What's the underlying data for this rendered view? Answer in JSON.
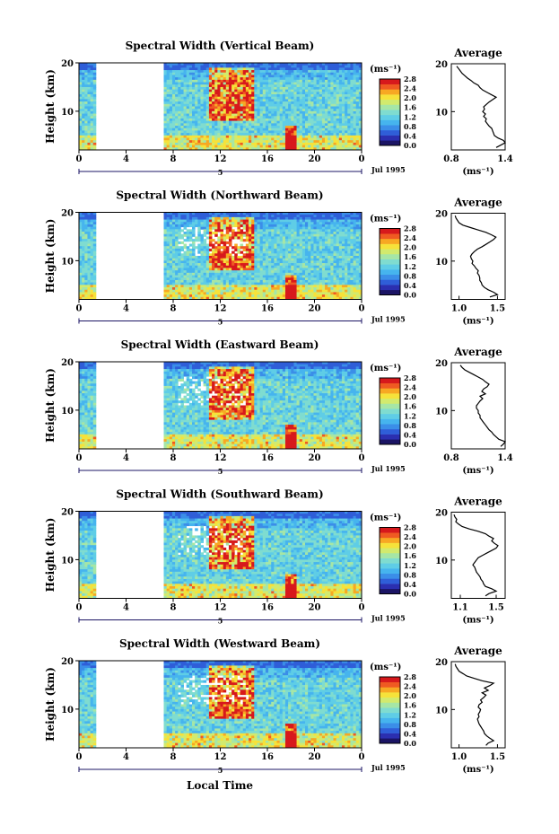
{
  "chart_data": [
    {
      "type": "heatmap",
      "title": "Spectral Width (Vertical Beam)",
      "ylabel": "Height (km)",
      "xticks": [
        "0",
        "4",
        "8",
        "12",
        "16",
        "20",
        "0"
      ],
      "ytick_labels": [
        "10",
        "20"
      ],
      "ylim": [
        2,
        20
      ],
      "xlim": [
        0,
        24
      ],
      "date_label": "Jul 1995",
      "day_marker": "5",
      "colorbar": {
        "unit_label": "(ms⁻¹)",
        "ticks": [
          "2.8",
          "2.4",
          "2.0",
          "1.6",
          "1.2",
          "0.8",
          "0.4",
          "0.0"
        ],
        "range": [
          0.0,
          2.8
        ]
      },
      "data_gap_hours": [
        1.5,
        7.0
      ],
      "profile": {
        "title": "Average",
        "xlabel": "(ms⁻¹)",
        "xticks": [
          "0.8",
          "1.4"
        ],
        "xlim": [
          0.8,
          1.4
        ],
        "yticks": [
          "10",
          "20"
        ],
        "ylim": [
          2,
          20
        ],
        "heights": [
          2.5,
          3,
          3.5,
          4,
          4.5,
          5,
          5.5,
          6,
          6.5,
          7,
          7.5,
          8,
          8.5,
          9,
          9.5,
          10,
          10.5,
          11,
          11.5,
          12,
          12.5,
          13,
          13.5,
          14,
          14.5,
          15,
          15.5,
          16,
          16.5,
          17,
          17.5,
          18,
          18.5,
          19,
          19.5
        ],
        "values": [
          1.3,
          1.35,
          1.4,
          1.38,
          1.32,
          1.28,
          1.27,
          1.26,
          1.25,
          1.22,
          1.2,
          1.18,
          1.19,
          1.16,
          1.18,
          1.15,
          1.17,
          1.16,
          1.19,
          1.22,
          1.26,
          1.3,
          1.25,
          1.2,
          1.15,
          1.12,
          1.1,
          1.05,
          1.02,
          0.98,
          0.95,
          0.92,
          0.9,
          0.88,
          0.86
        ]
      }
    },
    {
      "type": "heatmap",
      "title": "Spectral Width (Northward Beam)",
      "ylabel": "Height (km)",
      "xticks": [
        "0",
        "4",
        "8",
        "12",
        "16",
        "20",
        "0"
      ],
      "ytick_labels": [
        "10",
        "20"
      ],
      "ylim": [
        2,
        20
      ],
      "xlim": [
        0,
        24
      ],
      "date_label": "Jul 1995",
      "day_marker": "5",
      "colorbar": {
        "unit_label": "(ms⁻¹)",
        "ticks": [
          "2.8",
          "2.4",
          "2.0",
          "1.6",
          "1.2",
          "0.8",
          "0.4",
          "0.0"
        ],
        "range": [
          0.0,
          2.8
        ]
      },
      "data_gap_hours": [
        1.5,
        7.0
      ],
      "profile": {
        "title": "Average",
        "xlabel": "(ms⁻¹)",
        "xticks": [
          "1.0",
          "1.5"
        ],
        "xlim": [
          0.9,
          1.6
        ],
        "yticks": [
          "10",
          "20"
        ],
        "ylim": [
          2,
          20
        ],
        "heights": [
          2.5,
          3,
          3.5,
          4,
          4.5,
          5,
          5.5,
          6,
          6.5,
          7,
          7.5,
          8,
          8.5,
          9,
          9.5,
          10,
          10.5,
          11,
          11.5,
          12,
          12.5,
          13,
          13.5,
          14,
          14.5,
          15,
          15.5,
          16,
          16.5,
          17,
          17.5,
          18,
          18.5,
          19,
          19.5
        ],
        "values": [
          1.4,
          1.5,
          1.45,
          1.38,
          1.33,
          1.3,
          1.29,
          1.27,
          1.27,
          1.26,
          1.24,
          1.25,
          1.22,
          1.2,
          1.17,
          1.18,
          1.16,
          1.15,
          1.17,
          1.2,
          1.24,
          1.3,
          1.35,
          1.4,
          1.45,
          1.48,
          1.42,
          1.35,
          1.25,
          1.15,
          1.05,
          1.0,
          0.98,
          0.96,
          0.95
        ]
      }
    },
    {
      "type": "heatmap",
      "title": "Spectral Width (Eastward Beam)",
      "ylabel": "Height (km)",
      "xticks": [
        "0",
        "4",
        "8",
        "12",
        "16",
        "20",
        "0"
      ],
      "ytick_labels": [
        "10",
        "20"
      ],
      "ylim": [
        2,
        20
      ],
      "xlim": [
        0,
        24
      ],
      "date_label": "Jul 1995",
      "day_marker": "5",
      "colorbar": {
        "unit_label": "(ms⁻¹)",
        "ticks": [
          "2.8",
          "2.4",
          "2.0",
          "1.6",
          "1.2",
          "0.8",
          "0.4",
          "0.0"
        ],
        "range": [
          0.0,
          2.8
        ]
      },
      "data_gap_hours": [
        1.5,
        7.0
      ],
      "profile": {
        "title": "Average",
        "xlabel": "(ms⁻¹)",
        "xticks": [
          "0.8",
          "1.4"
        ],
        "xlim": [
          0.8,
          1.4
        ],
        "yticks": [
          "10",
          "20"
        ],
        "ylim": [
          2,
          20
        ],
        "heights": [
          2.5,
          3,
          3.5,
          4,
          4.5,
          5,
          5.5,
          6,
          6.5,
          7,
          7.5,
          8,
          8.5,
          9,
          9.5,
          10,
          10.5,
          11,
          11.5,
          12,
          12.5,
          13,
          13.5,
          14,
          14.5,
          15,
          15.5,
          16,
          16.5,
          17,
          17.5,
          18,
          18.5,
          19,
          19.5
        ],
        "values": [
          1.35,
          1.38,
          1.4,
          1.33,
          1.3,
          1.27,
          1.25,
          1.22,
          1.2,
          1.18,
          1.16,
          1.14,
          1.12,
          1.12,
          1.1,
          1.1,
          1.08,
          1.08,
          1.1,
          1.12,
          1.15,
          1.12,
          1.18,
          1.14,
          1.16,
          1.2,
          1.22,
          1.18,
          1.15,
          1.1,
          1.05,
          1.0,
          0.95,
          0.92,
          0.9
        ]
      }
    },
    {
      "type": "heatmap",
      "title": "Spectral Width (Southward Beam)",
      "ylabel": "Height (km)",
      "xticks": [
        "0",
        "4",
        "8",
        "12",
        "16",
        "20",
        "0"
      ],
      "ytick_labels": [
        "10",
        "20"
      ],
      "ylim": [
        2,
        20
      ],
      "xlim": [
        0,
        24
      ],
      "date_label": "Jul 1995",
      "day_marker": "5",
      "colorbar": {
        "unit_label": "(ms⁻¹)",
        "ticks": [
          "2.8",
          "2.4",
          "2.0",
          "1.6",
          "1.2",
          "0.8",
          "0.4",
          "0.0"
        ],
        "range": [
          0.0,
          2.8
        ]
      },
      "data_gap_hours": [
        1.5,
        7.0
      ],
      "profile": {
        "title": "Average",
        "xlabel": "(ms⁻¹)",
        "xticks": [
          "1.1",
          "1.5"
        ],
        "xlim": [
          1.0,
          1.6
        ],
        "yticks": [
          "10",
          "20"
        ],
        "ylim": [
          2,
          20
        ],
        "heights": [
          2.5,
          3,
          3.5,
          4,
          4.5,
          5,
          5.5,
          6,
          6.5,
          7,
          7.5,
          8,
          8.5,
          9,
          9.5,
          10,
          10.5,
          11,
          11.5,
          12,
          12.5,
          13,
          13.5,
          14,
          14.5,
          15,
          15.5,
          16,
          16.5,
          17,
          17.5,
          18,
          18.5,
          19,
          19.5
        ],
        "values": [
          1.38,
          1.42,
          1.5,
          1.45,
          1.38,
          1.36,
          1.35,
          1.33,
          1.32,
          1.3,
          1.28,
          1.27,
          1.26,
          1.24,
          1.26,
          1.28,
          1.3,
          1.35,
          1.4,
          1.45,
          1.5,
          1.52,
          1.48,
          1.45,
          1.47,
          1.42,
          1.38,
          1.3,
          1.2,
          1.12,
          1.08,
          1.05,
          1.06,
          1.04,
          1.03
        ]
      }
    },
    {
      "type": "heatmap",
      "title": "Spectral Width (Westward Beam)",
      "ylabel": "Height (km)",
      "xticks": [
        "0",
        "4",
        "8",
        "12",
        "16",
        "20",
        "0"
      ],
      "ytick_labels": [
        "10",
        "20"
      ],
      "ylim": [
        2,
        20
      ],
      "xlim": [
        0,
        24
      ],
      "date_label": "Jul 1995",
      "day_marker": "5",
      "colorbar": {
        "unit_label": "(ms⁻¹)",
        "ticks": [
          "2.8",
          "2.4",
          "2.0",
          "1.6",
          "1.2",
          "0.8",
          "0.4",
          "0.0"
        ],
        "range": [
          0.0,
          2.8
        ]
      },
      "data_gap_hours": [
        1.5,
        7.0
      ],
      "profile": {
        "title": "Average",
        "xlabel": "(ms⁻¹)",
        "xticks": [
          "1.0",
          "1.5"
        ],
        "xlim": [
          0.9,
          1.6
        ],
        "yticks": [
          "10",
          "20"
        ],
        "ylim": [
          2,
          20
        ],
        "heights": [
          2.5,
          3,
          3.5,
          4,
          4.5,
          5,
          5.5,
          6,
          6.5,
          7,
          7.5,
          8,
          8.5,
          9,
          9.5,
          10,
          10.5,
          11,
          11.5,
          12,
          12.5,
          13,
          13.5,
          14,
          14.5,
          15,
          15.5,
          16,
          16.5,
          17,
          17.5,
          18,
          18.5,
          19,
          19.5
        ],
        "values": [
          1.35,
          1.38,
          1.45,
          1.4,
          1.36,
          1.33,
          1.32,
          1.3,
          1.28,
          1.26,
          1.25,
          1.24,
          1.26,
          1.25,
          1.27,
          1.28,
          1.25,
          1.26,
          1.3,
          1.28,
          1.32,
          1.35,
          1.3,
          1.38,
          1.33,
          1.4,
          1.45,
          1.3,
          1.2,
          1.1,
          1.05,
          1.0,
          0.98,
          0.96,
          0.95
        ]
      }
    }
  ],
  "bottom_xlabel": "Local Time",
  "colormap": [
    "#1b1464",
    "#2b2fb0",
    "#2f5ed8",
    "#3b8ee8",
    "#46b4ee",
    "#5fcde6",
    "#7fdcd0",
    "#a6e6a6",
    "#d2ea6e",
    "#f6e23a",
    "#f7a823",
    "#ef5a22",
    "#d7191c"
  ]
}
